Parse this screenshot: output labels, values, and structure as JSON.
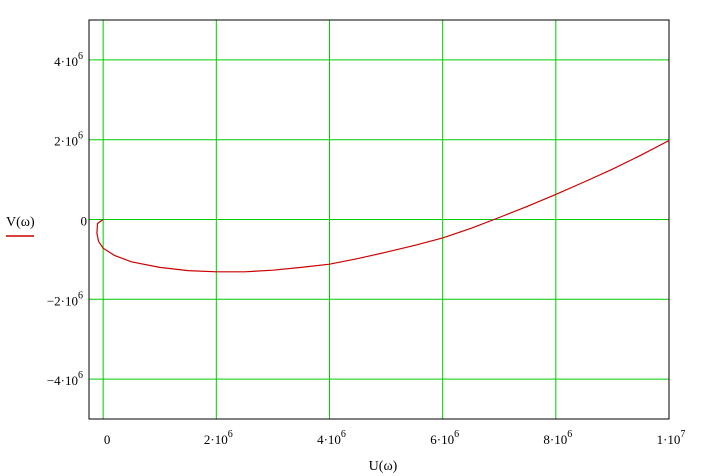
{
  "chart_data": {
    "type": "line",
    "xlabel": "U(ω)",
    "ylabel": "V(ω)",
    "xlim": [
      -250000,
      10000000
    ],
    "ylim": [
      -5000000,
      5000000
    ],
    "grid": true,
    "colors": {
      "grid": "#00cc00",
      "series": "#cc0000",
      "frame": "#000000"
    },
    "x_ticks": [
      {
        "value": 0,
        "base": "0",
        "exp": ""
      },
      {
        "value": 2000000,
        "base": "2·10",
        "exp": "6"
      },
      {
        "value": 4000000,
        "base": "4·10",
        "exp": "6"
      },
      {
        "value": 6000000,
        "base": "6·10",
        "exp": "6"
      },
      {
        "value": 8000000,
        "base": "8·10",
        "exp": "6"
      },
      {
        "value": 10000000,
        "base": "1·10",
        "exp": "7"
      }
    ],
    "y_ticks": [
      {
        "value": 4000000,
        "base": "4·10",
        "exp": "6"
      },
      {
        "value": 2000000,
        "base": "2·10",
        "exp": "6"
      },
      {
        "value": 0,
        "base": "0",
        "exp": ""
      },
      {
        "value": -2000000,
        "base": "−2·10",
        "exp": "6"
      },
      {
        "value": -4000000,
        "base": "−4·10",
        "exp": "6"
      }
    ],
    "series": [
      {
        "name": "V(ω)",
        "x": [
          0,
          -100000,
          -110000,
          -80000,
          0,
          200000,
          500000,
          1000000,
          1500000,
          2000000,
          2500000,
          3000000,
          3500000,
          4000000,
          4500000,
          5000000,
          5500000,
          6000000,
          6500000,
          7000000,
          7500000,
          8000000,
          8500000,
          9000000,
          9500000,
          10000000
        ],
        "y": [
          0,
          -100000,
          -350000,
          -550000,
          -720000,
          -900000,
          -1060000,
          -1200000,
          -1280000,
          -1310000,
          -1310000,
          -1270000,
          -1200000,
          -1120000,
          -980000,
          -820000,
          -650000,
          -460000,
          -220000,
          50000,
          330000,
          630000,
          940000,
          1260000,
          1610000,
          1980000
        ]
      }
    ]
  }
}
